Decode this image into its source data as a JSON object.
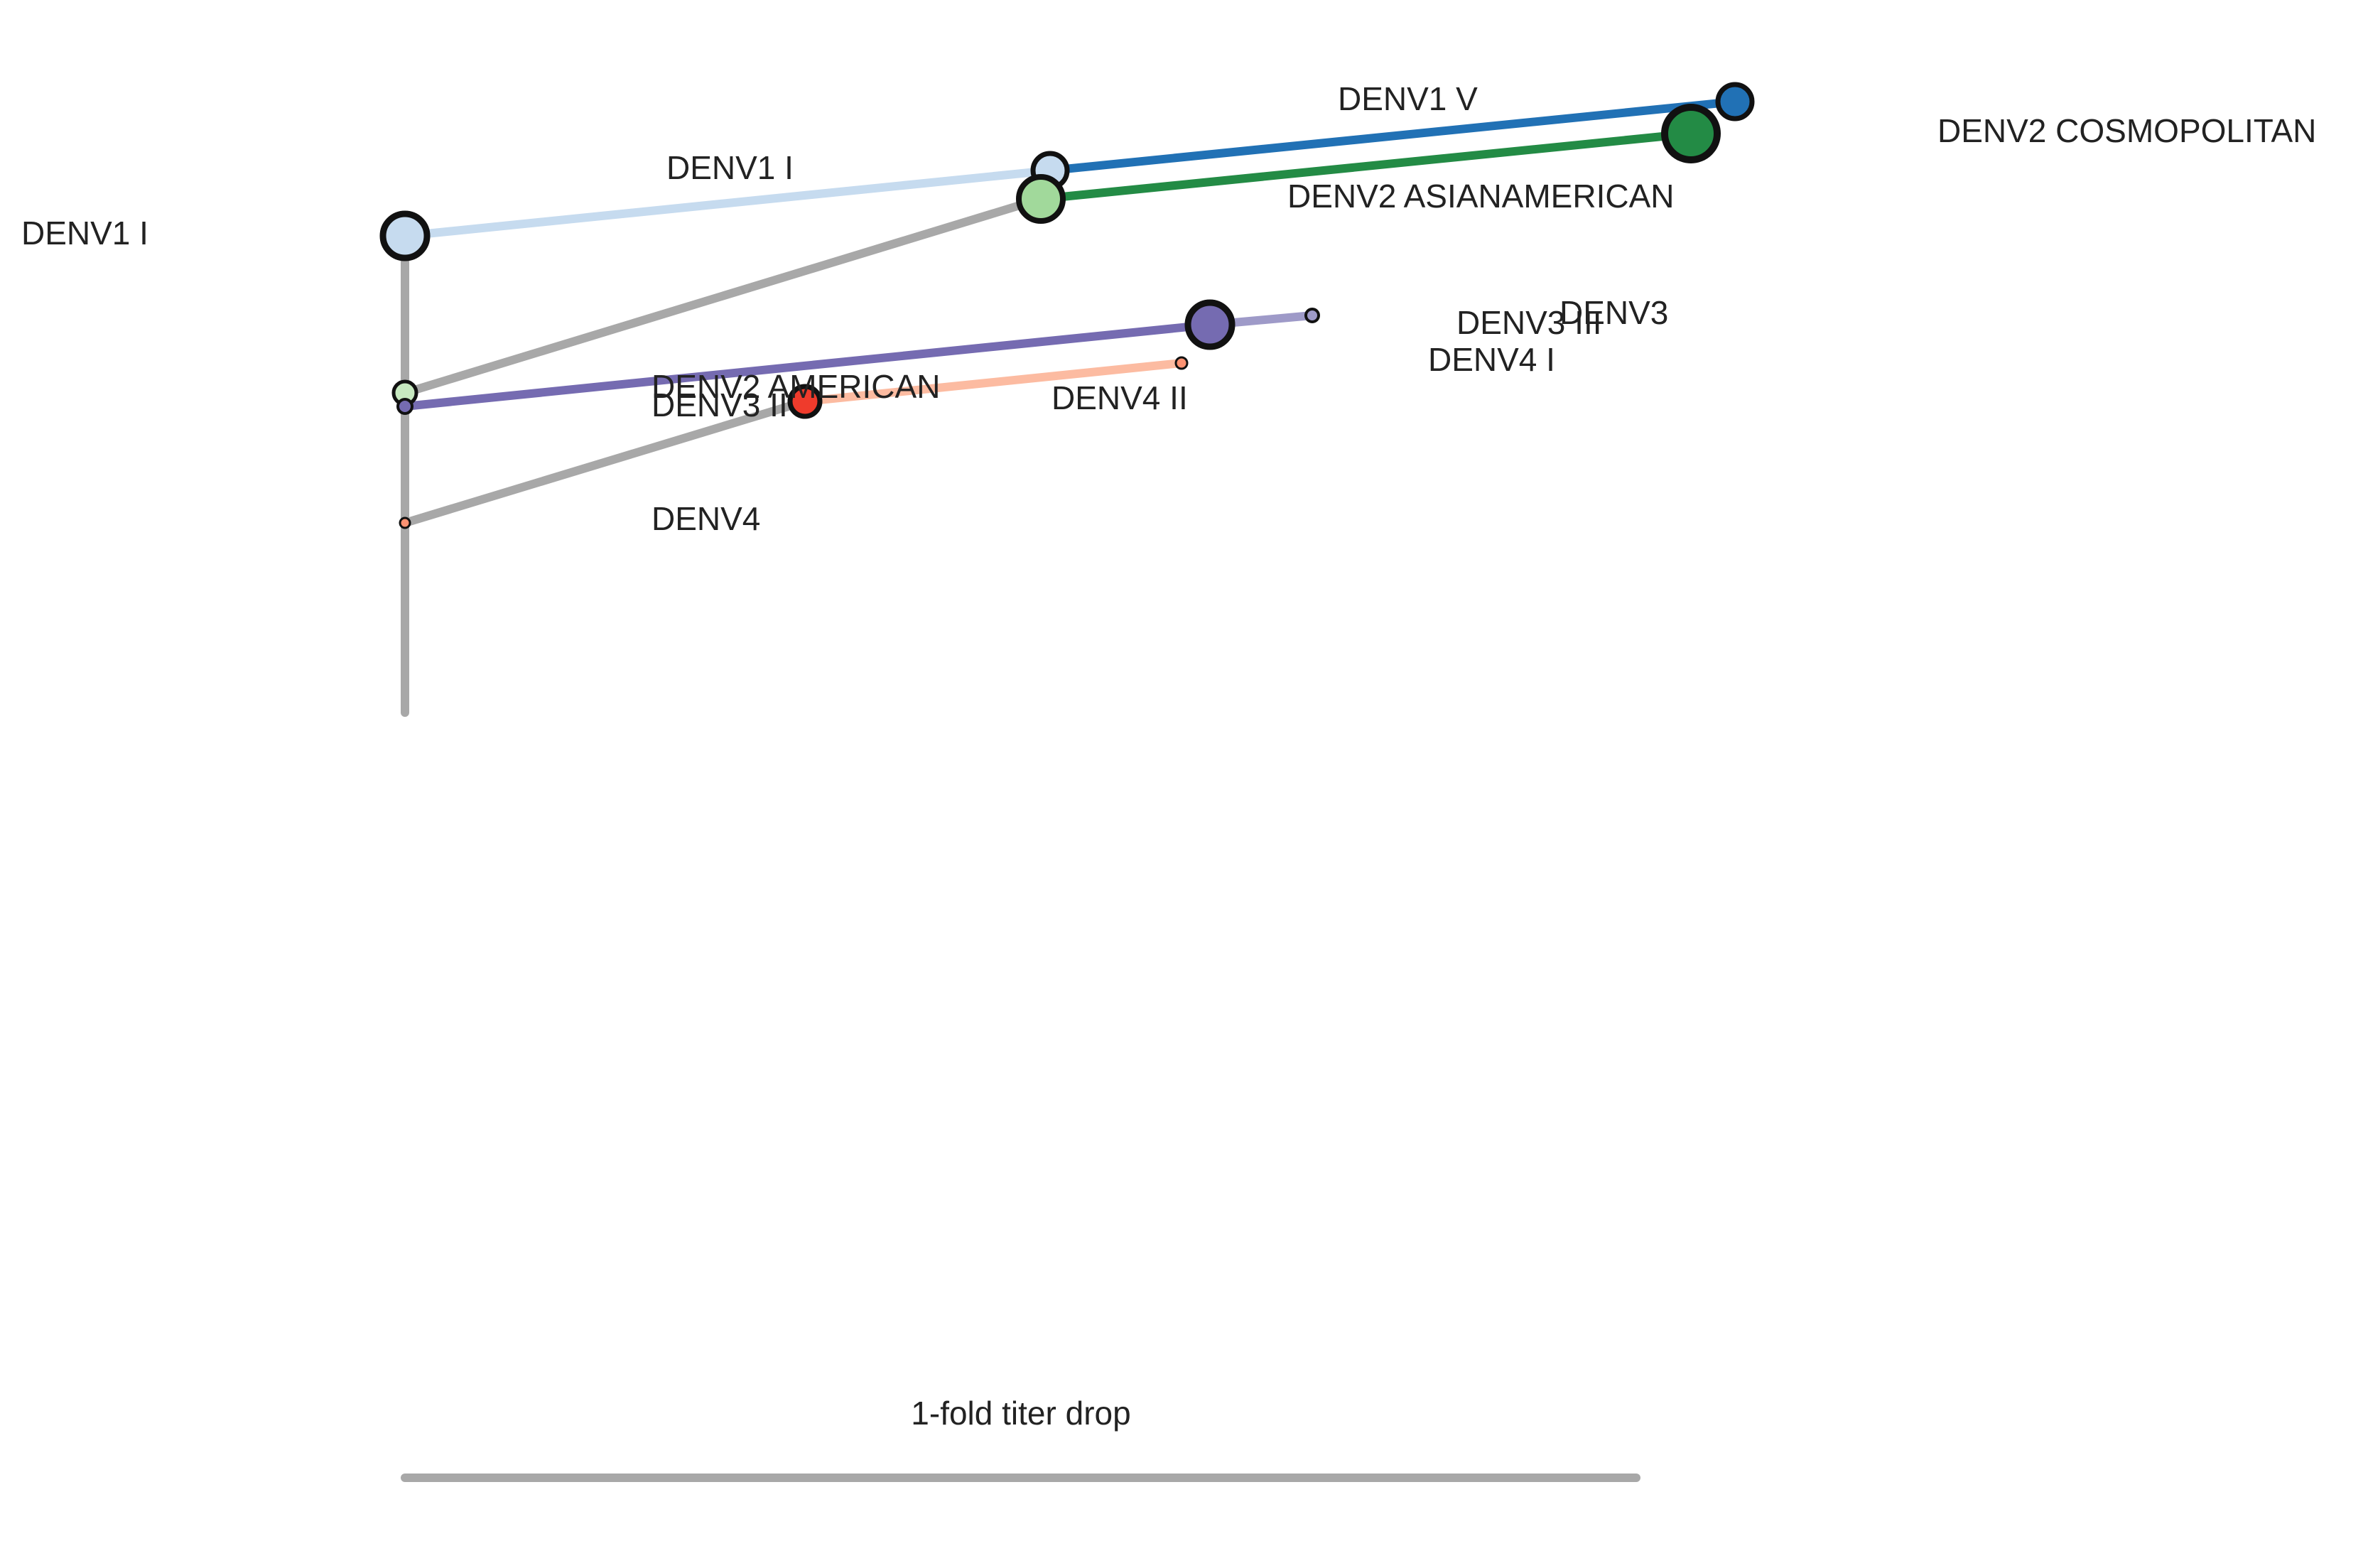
{
  "colors": {
    "trunk": "#a8a8a8",
    "denv1_i": "#c6dbef",
    "denv1_v": "#2171b5",
    "denv2_asianamerican": "#a1d99b",
    "denv2_cosmopolitan": "#238b45",
    "denv2_american": "#c7e9c0",
    "denv3": "#756bb1",
    "denv3_iii": "#9e9ac8",
    "denv4": "#fc9272",
    "denv4_i": "#fc9272",
    "denv4_ii": "#fcbba1",
    "denv4_ii_node": "#ef3b2c"
  },
  "labels": {
    "denv1_i_root": "DENV1 I",
    "denv1_i": "DENV1 I",
    "denv1_v": "DENV1 V",
    "denv2_cosmopolitan": "DENV2 COSMOPOLITAN",
    "denv2_asianamerican": "DENV2 ASIANAMERICAN",
    "denv3": "DENV3",
    "denv3_iii": "DENV3 III",
    "denv4_i": "DENV4 I",
    "denv2_american": "DENV2 AMERICAN",
    "denv3_ii": "DENV3 II",
    "denv4_ii": "DENV4 II",
    "denv4": "DENV4"
  },
  "scale_bar": {
    "label": "1-fold titer drop",
    "fold": 1
  }
}
